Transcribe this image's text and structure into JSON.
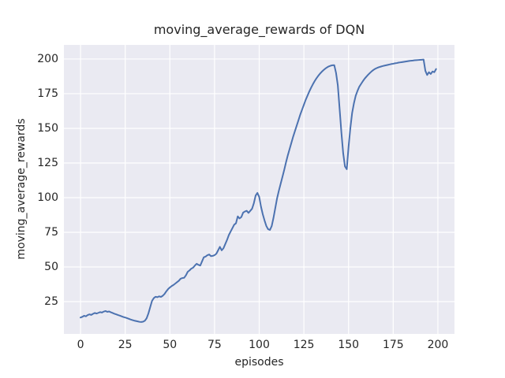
{
  "figure": {
    "title": "moving_average_rewards of DQN",
    "xlabel": "episodes",
    "ylabel": "moving_average_rewards"
  },
  "chart_data": {
    "type": "line",
    "title": "moving_average_rewards of DQN",
    "xlabel": "episodes",
    "ylabel": "moving_average_rewards",
    "xlim": [
      -9.3,
      209.3
    ],
    "ylim": [
      1.7,
      210.2
    ],
    "xticks": [
      0,
      25,
      50,
      75,
      100,
      125,
      150,
      175,
      200
    ],
    "yticks": [
      25,
      50,
      75,
      100,
      125,
      150,
      175,
      200
    ],
    "grid": true,
    "legend": false,
    "style": {
      "figure_bg": "#ffffff",
      "axes_bg": "#eaeaf2",
      "grid_color": "#ffffff",
      "line_color": "#4c72b0",
      "text_color": "#262626"
    },
    "series": [
      {
        "name": "moving_average_rewards",
        "color": "#4c72b0",
        "x_start": 0,
        "x_step": 1,
        "y": [
          13.5,
          14.0,
          14.8,
          14.4,
          15.3,
          15.8,
          15.4,
          16.2,
          16.8,
          16.4,
          16.9,
          17.4,
          17.1,
          17.8,
          18.2,
          17.6,
          17.9,
          17.3,
          16.8,
          16.2,
          15.8,
          15.3,
          14.9,
          14.4,
          13.9,
          13.5,
          13.1,
          12.6,
          12.1,
          11.7,
          11.3,
          11.0,
          10.7,
          10.4,
          10.3,
          10.5,
          11.2,
          13.0,
          16.5,
          21.0,
          25.5,
          27.5,
          28.5,
          28.2,
          28.8,
          28.4,
          29.2,
          30.5,
          32.4,
          34.0,
          35.2,
          36.2,
          37.0,
          38.0,
          39.0,
          40.0,
          41.5,
          42.0,
          42.2,
          44.0,
          46.5,
          47.5,
          48.8,
          49.5,
          51.0,
          52.3,
          51.5,
          51.0,
          54.0,
          57.0,
          57.5,
          58.5,
          59.0,
          57.8,
          58.0,
          58.5,
          59.5,
          62.0,
          64.5,
          62.0,
          63.5,
          66.5,
          69.5,
          73.0,
          75.5,
          78.0,
          80.5,
          81.5,
          86.5,
          85.0,
          86.0,
          89.2,
          90.0,
          90.5,
          89.0,
          90.5,
          92.0,
          96.0,
          101.5,
          103.4,
          100.5,
          93.5,
          88.0,
          83.5,
          79.5,
          77.2,
          76.7,
          79.5,
          85.5,
          92.5,
          99.5,
          105.0,
          110.0,
          115.0,
          120.0,
          125.5,
          130.5,
          135.0,
          139.5,
          144.0,
          148.0,
          152.0,
          156.0,
          160.0,
          163.5,
          167.0,
          170.5,
          173.5,
          176.5,
          179.2,
          181.7,
          184.0,
          186.0,
          187.8,
          189.4,
          190.8,
          192.0,
          193.1,
          194.0,
          194.7,
          195.2,
          195.5,
          195.6,
          190.0,
          181.0,
          164.0,
          147.0,
          132.0,
          122.5,
          120.5,
          136.5,
          150.0,
          161.0,
          168.0,
          173.5,
          177.0,
          180.0,
          182.0,
          184.0,
          185.8,
          187.3,
          188.7,
          190.0,
          191.2,
          192.2,
          193.0,
          193.6,
          194.1,
          194.5,
          194.9,
          195.2,
          195.5,
          195.8,
          196.1,
          196.4,
          196.6,
          196.9,
          197.1,
          197.4,
          197.6,
          197.8,
          198.0,
          198.2,
          198.4,
          198.6,
          198.8,
          198.9,
          199.1,
          199.2,
          199.3,
          199.4,
          199.5,
          199.6,
          191.5,
          188.5,
          190.5,
          189.2,
          191.0,
          190.5,
          192.8
        ]
      }
    ]
  }
}
